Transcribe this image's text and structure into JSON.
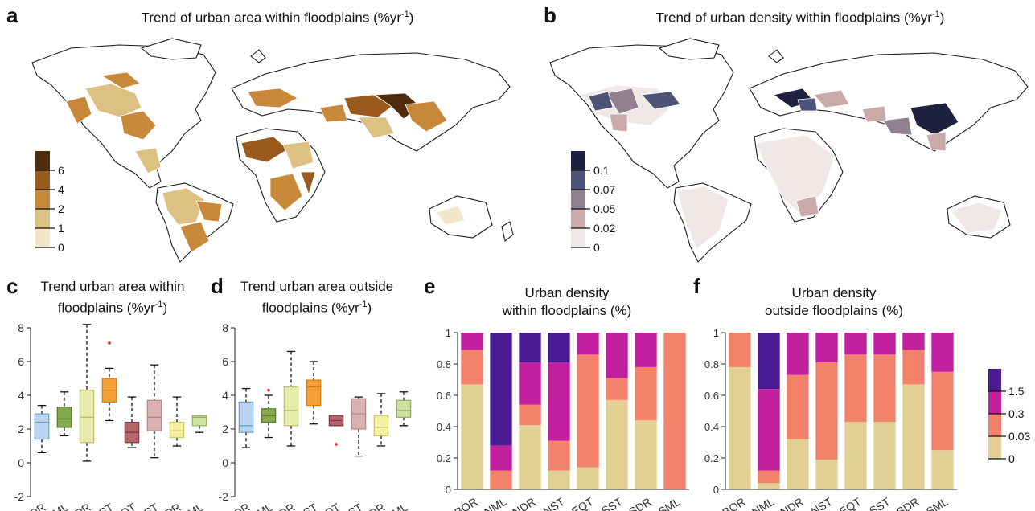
{
  "panels": {
    "a": {
      "letter": "a",
      "title": "Trend of urban area within floodplains (%yr",
      "title_sup": "-1",
      "title_end": ")"
    },
    "b": {
      "letter": "b",
      "title": "Trend of urban density within floodplains (%yr",
      "title_sup": "-1",
      "title_end": ")"
    },
    "c": {
      "letter": "c",
      "title_line1": "Trend urban area within",
      "title_line2a": "floodplains (%yr",
      "title_sup": "-1",
      "title_line2b": ")"
    },
    "d": {
      "letter": "d",
      "title_line1": "Trend urban area outside",
      "title_line2a": "floodplains (%yr",
      "title_sup": "-1",
      "title_line2b": ")"
    },
    "e": {
      "letter": "e",
      "title_line1": "Urban density",
      "title_line2": "within floodplains (%)"
    },
    "f": {
      "letter": "f",
      "title_line1": "Urban density",
      "title_line2": "outside floodplains (%)"
    }
  },
  "colors": {
    "map_a": [
      "#f4e6c8",
      "#dcc182",
      "#c88a3a",
      "#9a5a1c",
      "#4f2d0c"
    ],
    "map_b": [
      "#efe8e6",
      "#c9aaa8",
      "#908090",
      "#4e5478",
      "#1f2140"
    ],
    "stack": [
      "#e2cf93",
      "#f2826a",
      "#c21f9e",
      "#4a1a92"
    ],
    "box_fill": [
      "#b8d4ee",
      "#86a94e",
      "#e8eba9",
      "#f6a03a",
      "#b4666a",
      "#d9b3b1",
      "#f6f1a1",
      "#cfe3a1"
    ],
    "box_line": [
      "#6f9fd0",
      "#557a26",
      "#b9be66",
      "#d97b12",
      "#7e3a3e",
      "#b88482",
      "#c9c360",
      "#8fb05a"
    ]
  },
  "chart_data": [
    {
      "id": "a",
      "type": "choropleth",
      "legend": {
        "ticks": [
          "6",
          "4",
          "2",
          "1",
          "0"
        ]
      }
    },
    {
      "id": "b",
      "type": "choropleth",
      "legend": {
        "ticks": [
          "0.1",
          "0.07",
          "0.05",
          "0.02",
          "0"
        ]
      }
    },
    {
      "id": "c",
      "type": "box",
      "categories": [
        "BOR",
        "NML",
        "NDR",
        "NST",
        "EQT",
        "SST",
        "SDR",
        "SML"
      ],
      "ylim": [
        -2,
        8
      ],
      "yticks": [
        "-2",
        "0",
        "2",
        "4",
        "6",
        "8"
      ],
      "boxes": [
        {
          "min": 0.6,
          "q1": 1.4,
          "median": 2.4,
          "q3": 2.9,
          "max": 3.4,
          "outliers": []
        },
        {
          "min": 1.6,
          "q1": 2.1,
          "median": 2.6,
          "q3": 3.3,
          "max": 4.2,
          "outliers": []
        },
        {
          "min": 0.1,
          "q1": 1.2,
          "median": 2.7,
          "q3": 4.3,
          "max": 8.2,
          "outliers": []
        },
        {
          "min": 2.5,
          "q1": 3.6,
          "median": 4.3,
          "q3": 5.0,
          "max": 5.6,
          "outliers": [
            7.1
          ]
        },
        {
          "min": 0.9,
          "q1": 1.2,
          "median": 1.8,
          "q3": 2.4,
          "max": 3.9,
          "outliers": []
        },
        {
          "min": 0.3,
          "q1": 1.9,
          "median": 2.7,
          "q3": 3.7,
          "max": 5.8,
          "outliers": []
        },
        {
          "min": 1.0,
          "q1": 1.5,
          "median": 1.9,
          "q3": 2.4,
          "max": 3.9,
          "outliers": []
        },
        {
          "min": 1.8,
          "q1": 2.2,
          "median": 2.7,
          "q3": 2.8,
          "max": 2.8,
          "outliers": []
        }
      ]
    },
    {
      "id": "d",
      "type": "box",
      "categories": [
        "BOR",
        "NML",
        "NDR",
        "NST",
        "EQT",
        "SST",
        "SDR",
        "SML"
      ],
      "ylim": [
        -2,
        8
      ],
      "yticks": [
        "-2",
        "0",
        "2",
        "4",
        "6",
        "8"
      ],
      "boxes": [
        {
          "min": 0.9,
          "q1": 1.8,
          "median": 2.2,
          "q3": 3.6,
          "max": 4.4,
          "outliers": []
        },
        {
          "min": 1.5,
          "q1": 2.4,
          "median": 2.8,
          "q3": 3.2,
          "max": 4.0,
          "outliers": [
            4.3
          ]
        },
        {
          "min": 1.0,
          "q1": 2.2,
          "median": 3.1,
          "q3": 4.5,
          "max": 6.6,
          "outliers": []
        },
        {
          "min": 2.3,
          "q1": 3.4,
          "median": 4.5,
          "q3": 4.9,
          "max": 6.0,
          "outliers": []
        },
        {
          "min": 2.2,
          "q1": 2.2,
          "median": 2.5,
          "q3": 2.8,
          "max": 2.8,
          "outliers": [
            1.1
          ]
        },
        {
          "min": 0.4,
          "q1": 2.0,
          "median": 2.9,
          "q3": 3.8,
          "max": 3.9,
          "outliers": []
        },
        {
          "min": 1.0,
          "q1": 1.6,
          "median": 2.1,
          "q3": 2.8,
          "max": 4.1,
          "outliers": []
        },
        {
          "min": 2.2,
          "q1": 2.7,
          "median": 3.1,
          "q3": 3.7,
          "max": 4.2,
          "outliers": []
        }
      ]
    },
    {
      "id": "e",
      "type": "bar",
      "stacked": true,
      "categories": [
        "BOR",
        "NML",
        "NDR",
        "NST",
        "EQT",
        "SST",
        "SDR",
        "SML"
      ],
      "ylim": [
        0,
        1
      ],
      "yticks": [
        "0",
        "0.2",
        "0.4",
        "0.6",
        "0.8",
        "1"
      ],
      "series": [
        {
          "values": [
            0.67,
            0.0,
            0.41,
            0.12,
            0.14,
            0.57,
            0.44,
            0.0
          ]
        },
        {
          "values": [
            0.22,
            0.12,
            0.13,
            0.19,
            0.72,
            0.14,
            0.34,
            1.0
          ]
        },
        {
          "values": [
            0.11,
            0.16,
            0.27,
            0.5,
            0.14,
            0.29,
            0.22,
            0.0
          ]
        },
        {
          "values": [
            0.0,
            0.72,
            0.19,
            0.19,
            0.0,
            0.0,
            0.0,
            0.0
          ]
        }
      ]
    },
    {
      "id": "f",
      "type": "bar",
      "stacked": true,
      "categories": [
        "BOR",
        "NML",
        "NDR",
        "NST",
        "EQT",
        "SST",
        "SDR",
        "SML"
      ],
      "ylim": [
        0,
        1
      ],
      "yticks": [
        "0",
        "0.2",
        "0.4",
        "0.6",
        "0.8",
        "1"
      ],
      "series": [
        {
          "values": [
            0.78,
            0.04,
            0.32,
            0.19,
            0.43,
            0.43,
            0.67,
            0.25
          ]
        },
        {
          "values": [
            0.22,
            0.08,
            0.41,
            0.62,
            0.43,
            0.43,
            0.22,
            0.5
          ]
        },
        {
          "values": [
            0.0,
            0.52,
            0.27,
            0.19,
            0.14,
            0.14,
            0.11,
            0.25
          ]
        },
        {
          "values": [
            0.0,
            0.36,
            0.0,
            0.0,
            0.0,
            0.0,
            0.0,
            0.0
          ]
        }
      ],
      "legend": {
        "ticks": [
          "1.5",
          "0.3",
          "0.03",
          "0"
        ]
      }
    }
  ]
}
